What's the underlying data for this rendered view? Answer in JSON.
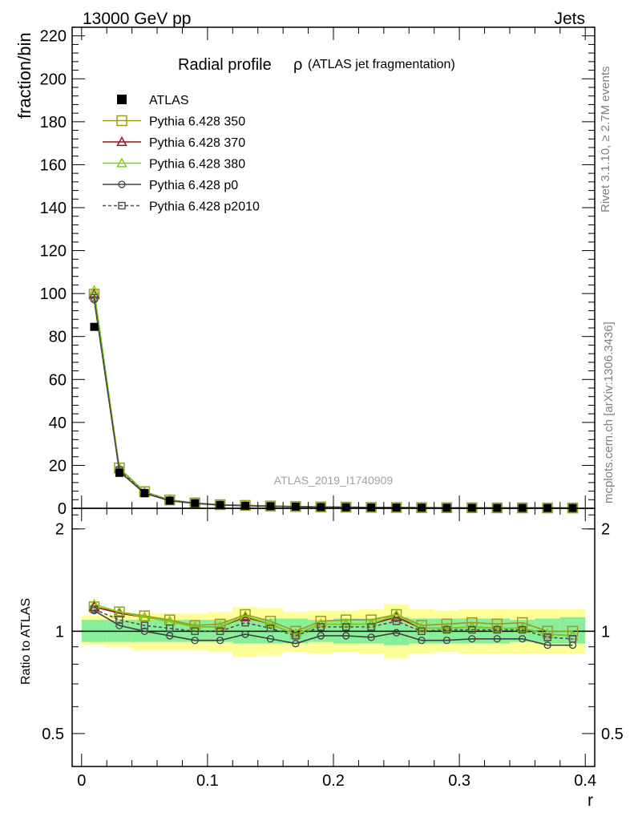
{
  "header": {
    "left": "13000 GeV pp",
    "right": "Jets"
  },
  "side_labels": {
    "rivet": "Rivet 3.1.10, ≥ 2.7M events",
    "mcplots": "mcplots.cern.ch [arXiv:1306.3436]"
  },
  "chart_data": {
    "type": "line",
    "title": "Radial profile ρ (ATLAS jet fragmentation)",
    "title_main": "Radial profile",
    "title_rho": "ρ",
    "title_paren": "(ATLAS jet fragmentation)",
    "watermark": "ATLAS_2019_I1740909",
    "xlabel": "r",
    "ylabel_main": "fraction/bin",
    "ylabel_ratio": "Ratio to ATLAS",
    "xlim": [
      -0.0075,
      0.4075
    ],
    "ylim_main": [
      0,
      224
    ],
    "ylim_ratio": [
      0.4,
      2.3
    ],
    "ratio_log_scale": true,
    "x_ticks": [
      "0",
      "0.1",
      "0.2",
      "0.3",
      "0.4"
    ],
    "main_y_ticks": [
      "0",
      "20",
      "40",
      "60",
      "80",
      "100",
      "120",
      "140",
      "160",
      "180",
      "200",
      "220"
    ],
    "ratio_y_ticks": [
      "0.5",
      "1",
      "2"
    ],
    "x": [
      0.01,
      0.03,
      0.05,
      0.07,
      0.09,
      0.11,
      0.13,
      0.15,
      0.17,
      0.19,
      0.21,
      0.23,
      0.25,
      0.27,
      0.29,
      0.31,
      0.33,
      0.35,
      0.37,
      0.39
    ],
    "data": {
      "name": "ATLAS",
      "values": [
        84.5,
        16.5,
        7.0,
        3.6,
        2.4,
        1.6,
        1.2,
        1.0,
        0.8,
        0.6,
        0.5,
        0.4,
        0.35,
        0.3,
        0.27,
        0.24,
        0.2,
        0.18,
        0.16,
        0.14
      ],
      "band_inner_lo": [
        0.93,
        0.93,
        0.93,
        0.93,
        0.93,
        0.93,
        0.92,
        0.92,
        0.92,
        0.93,
        0.92,
        0.92,
        0.91,
        0.92,
        0.92,
        0.92,
        0.92,
        0.93,
        0.92,
        0.92
      ],
      "band_inner_hi": [
        1.08,
        1.08,
        1.08,
        1.08,
        1.08,
        1.08,
        1.09,
        1.09,
        1.09,
        1.08,
        1.09,
        1.09,
        1.1,
        1.09,
        1.09,
        1.09,
        1.09,
        1.08,
        1.09,
        1.1
      ],
      "band_outer_lo": [
        0.91,
        0.9,
        0.88,
        0.88,
        0.88,
        0.87,
        0.84,
        0.85,
        0.87,
        0.86,
        0.87,
        0.86,
        0.83,
        0.86,
        0.87,
        0.86,
        0.86,
        0.86,
        0.86,
        0.86
      ],
      "band_outer_hi": [
        1.11,
        1.12,
        1.13,
        1.13,
        1.13,
        1.14,
        1.18,
        1.17,
        1.14,
        1.15,
        1.15,
        1.16,
        1.2,
        1.16,
        1.15,
        1.16,
        1.16,
        1.16,
        1.16,
        1.16
      ]
    },
    "series": [
      {
        "name": "Pythia 6.428 350",
        "color": "#9a9a20",
        "marker": "square-open",
        "dash": false,
        "marker_size": 12,
        "ratio": [
          1.18,
          1.14,
          1.11,
          1.08,
          1.04,
          1.05,
          1.12,
          1.07,
          1.0,
          1.07,
          1.08,
          1.08,
          1.12,
          1.04,
          1.05,
          1.06,
          1.05,
          1.06,
          1.0,
          1.0
        ]
      },
      {
        "name": "Pythia 6.428 370",
        "color": "#a01020",
        "marker": "triangle-open",
        "dash": false,
        "marker_size": 11,
        "ratio": [
          1.18,
          1.13,
          1.1,
          1.07,
          1.03,
          1.03,
          1.1,
          1.05,
          0.98,
          1.05,
          1.05,
          1.05,
          1.1,
          1.02,
          1.02,
          1.03,
          1.02,
          1.02,
          0.98,
          0.97
        ]
      },
      {
        "name": "Pythia 6.428 380",
        "color": "#80d010",
        "marker": "triangle-open",
        "dash": false,
        "marker_size": 11,
        "ratio": [
          1.2,
          1.14,
          1.1,
          1.07,
          1.03,
          1.03,
          1.11,
          1.05,
          0.98,
          1.05,
          1.05,
          1.05,
          1.12,
          1.02,
          1.02,
          1.03,
          1.02,
          1.02,
          0.98,
          0.97
        ]
      },
      {
        "name": "Pythia 6.428 p0",
        "color": "#404040",
        "marker": "circle-open",
        "dash": false,
        "marker_size": 8,
        "ratio": [
          1.15,
          1.04,
          1.0,
          0.97,
          0.94,
          0.94,
          0.98,
          0.95,
          0.92,
          0.97,
          0.97,
          0.96,
          0.99,
          0.94,
          0.94,
          0.95,
          0.95,
          0.95,
          0.91,
          0.91
        ]
      },
      {
        "name": "Pythia 6.428 p2010",
        "color": "#505050",
        "marker": "square-open",
        "dash": true,
        "marker_size": 8,
        "ratio": [
          1.16,
          1.08,
          1.04,
          1.02,
          1.0,
          1.0,
          1.06,
          1.02,
          0.97,
          1.03,
          1.03,
          1.03,
          1.07,
          1.0,
          1.01,
          1.01,
          1.01,
          1.01,
          0.96,
          0.95
        ]
      }
    ]
  }
}
